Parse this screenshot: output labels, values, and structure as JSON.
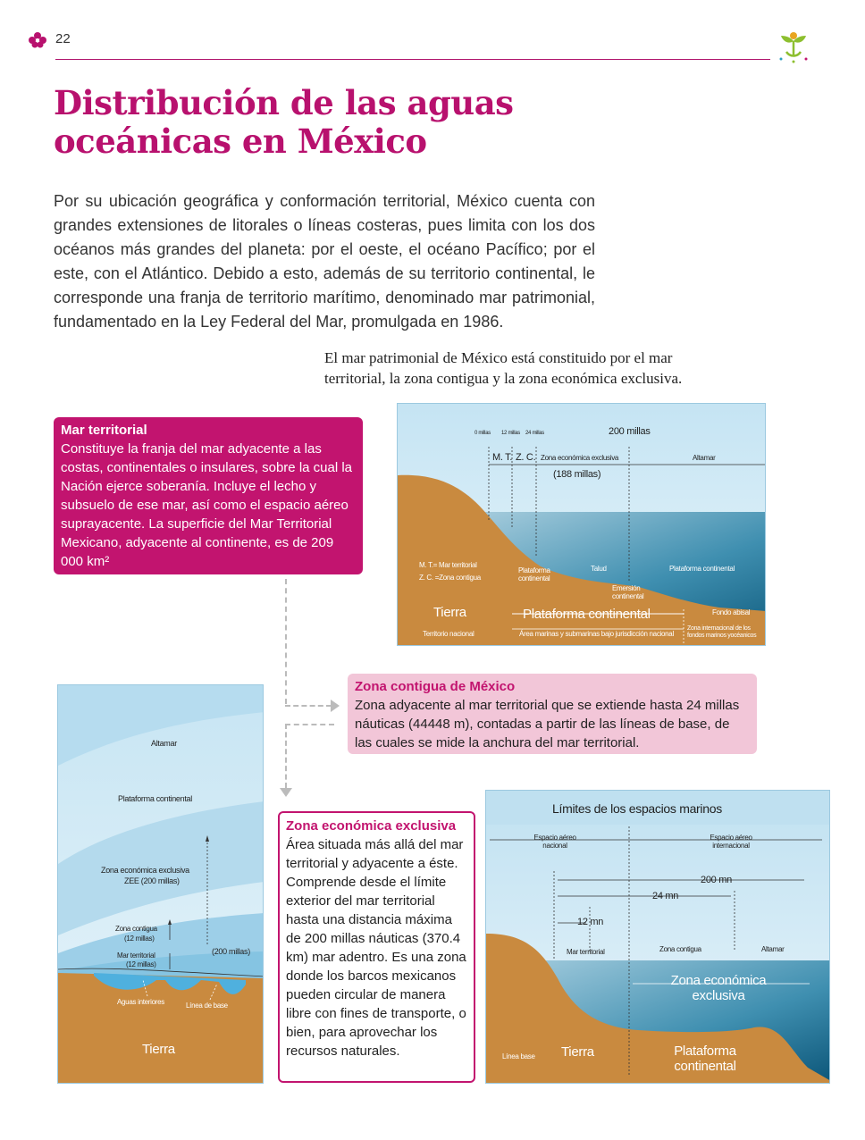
{
  "header": {
    "page_number": "22"
  },
  "title": {
    "line1": "Distribución de las aguas",
    "line2": "oceánicas en México"
  },
  "intro": "Por su ubicación geográfica y conformación territorial, México cuenta con grandes extensiones de litorales o líneas costeras, pues limita con los dos océanos más grandes del planeta: por el oeste, el océano Pacífico; por el este, con el Atlántico. Debido a esto, además de su territorio continental, le corresponde una franja de territorio marítimo, denominado mar patrimonial, fundamentado en la Ley Federal del Mar, promulgada en 1986.",
  "caption": "El mar patrimonial de México está constituido por el mar territorial, la zona contigua y la zona económica exclusiva.",
  "boxes": {
    "mar_territorial": {
      "title": "Mar territorial",
      "text": "Constituye la franja del mar adyacente a las costas, continentales o insulares, sobre la cual la Nación ejerce soberanía. Incluye el lecho y subsuelo de ese mar, así como el espacio aéreo suprayacente. La superficie del Mar Territorial Mexicano, adyacente al continente, es de 209 000 km²"
    },
    "zona_contigua": {
      "title": "Zona contigua de México",
      "text": "Zona adyacente al mar territorial que se extiende hasta 24 millas náuticas (44448 m), contadas a partir de las líneas de base, de las cuales se mide la anchura del mar territorial."
    },
    "zee": {
      "title": "Zona económica exclusiva",
      "text": "Área situada más allá del mar territorial y adyacente a éste. Comprende desde el límite exterior del mar territorial hasta una distancia máxima de 200 millas náuticas (370.4 km) mar adentro. Es una zona donde los barcos mexicanos pueden circular de manera libre con fines de transporte, o bien, para aprovechar los recursos naturales."
    }
  },
  "diagram1": {
    "tick_0": "0 millas",
    "tick_12": "12 millas",
    "tick_24": "24 millas",
    "tick_200": "200 millas",
    "mt": "M. T.",
    "zc": "Z. C.",
    "zee": "Zona económica exclusiva",
    "altamar": "Altamar",
    "miles188": "(188 millas)",
    "legend1": "M. T.= Mar territorial",
    "legend2": "Z. C. =Zona contigua",
    "plataforma_small": "Plataforma continental",
    "talud": "Talud",
    "emersion": "Emersión continental",
    "plataforma_right": "Plataforma continental",
    "fondo": "Fondo abisal",
    "tierra": "Tierra",
    "plataforma_big": "Plataforma continental",
    "territorio": "Territorio nacional",
    "area": "Área marinas y submarinas bajo jurisdicción nacional",
    "zona_int": "Zona internacional de los fondos marinos yocéanicos"
  },
  "diagram2": {
    "altamar": "Altamar",
    "plataforma": "Plataforma continental",
    "zee": "Zona económica exclusiva",
    "zee2": "ZEE (200 millas)",
    "contigua": "Zona contigua",
    "contigua2": "(12 millas)",
    "territorial": "Mar territorial",
    "territorial2": "(12 millas)",
    "millas200": "(200 millas)",
    "aguas": "Aguas interiores",
    "linea": "Línea de base",
    "tierra": "Tierra"
  },
  "diagram3": {
    "title": "Límites de los espacios marinos",
    "aereo_nac": "Espacio aéreo nacional",
    "aereo_int": "Espacio aéreo internacional",
    "mn200": "200 mn",
    "mn24": "24 mn",
    "mn12": "12 mn",
    "mar_territorial": "Mar territorial",
    "zona_contigua": "Zona contigua",
    "altamar": "Altamar",
    "zee": "Zona económica exclusiva",
    "linea_base": "Línea base",
    "tierra": "Tierra",
    "plataforma": "Plataforma continental"
  },
  "colors": {
    "accent": "#c2146f",
    "pink_box": "#f2c6d8",
    "land": "#c98a3f",
    "sea": "#2c84a8"
  }
}
